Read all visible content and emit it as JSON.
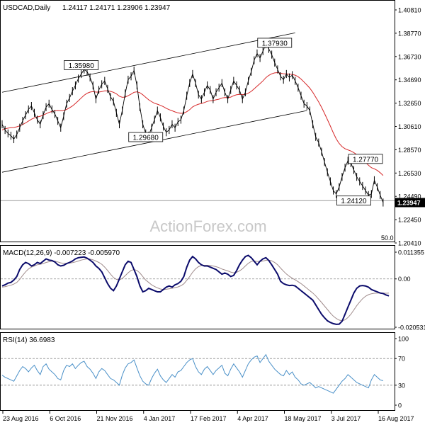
{
  "chart_data": {
    "type": "line",
    "title": "USDCAD,Daily",
    "ohlc": "1.24117 1.24171 1.23906 1.23947",
    "watermark": "ActionForex.com",
    "fib_label": "50.0",
    "colors": {
      "price": "#000000",
      "ema": "#d62728",
      "channel": "#000000",
      "macd": "#0b0b6b",
      "signal": "#a08c8c",
      "rsi": "#4a90c8",
      "guide": "#8a8a8a",
      "last_price_bg": "#000000"
    },
    "x_labels": [
      "23 Aug 2016",
      "6 Oct 2016",
      "21 Nov 2016",
      "4 Jan 2017",
      "17 Feb 2017",
      "4 Apr 2017",
      "18 May 2017",
      "3 Jul 2017",
      "16 Aug 2017"
    ],
    "price_panel": {
      "ylim": [
        1.2041,
        1.4081
      ],
      "y_ticks": [
        "1.40810",
        "1.38770",
        "1.36730",
        "1.34690",
        "1.32650",
        "1.30610",
        "1.28570",
        "1.26530",
        "1.24490",
        "1.22450",
        "1.20410"
      ],
      "last_price": "1.23947",
      "annotations": [
        {
          "label": "1.35980",
          "x": 27,
          "y": 1.3598
        },
        {
          "label": "1.29680",
          "x": 49,
          "y": 1.2968
        },
        {
          "label": "1.37930",
          "x": 93,
          "y": 1.3793
        },
        {
          "label": "1.27770",
          "x": 124,
          "y": 1.2777
        },
        {
          "label": "1.24120",
          "x": 120,
          "y": 1.2412
        }
      ],
      "channel_upper": [
        [
          0,
          1.336
        ],
        [
          100,
          1.388
        ]
      ],
      "channel_lower": [
        [
          0,
          1.266
        ],
        [
          104,
          1.32
        ]
      ],
      "horizontal_line": 1.2412,
      "close": [
        1.308,
        1.303,
        1.3,
        1.298,
        1.295,
        1.299,
        1.305,
        1.311,
        1.316,
        1.321,
        1.324,
        1.318,
        1.312,
        1.308,
        1.316,
        1.323,
        1.326,
        1.321,
        1.317,
        1.311,
        1.305,
        1.315,
        1.326,
        1.331,
        1.337,
        1.342,
        1.348,
        1.352,
        1.356,
        1.354,
        1.349,
        1.342,
        1.33,
        1.338,
        1.343,
        1.346,
        1.339,
        1.332,
        1.328,
        1.318,
        1.308,
        1.32,
        1.335,
        1.347,
        1.35,
        1.355,
        1.342,
        1.323,
        1.308,
        1.3,
        1.298,
        1.305,
        1.312,
        1.32,
        1.314,
        1.306,
        1.301,
        1.303,
        1.308,
        1.305,
        1.31,
        1.312,
        1.32,
        1.333,
        1.344,
        1.352,
        1.344,
        1.334,
        1.33,
        1.336,
        1.342,
        1.338,
        1.33,
        1.336,
        1.34,
        1.344,
        1.336,
        1.33,
        1.338,
        1.346,
        1.342,
        1.338,
        1.33,
        1.336,
        1.346,
        1.354,
        1.364,
        1.37,
        1.366,
        1.372,
        1.378,
        1.374,
        1.369,
        1.362,
        1.356,
        1.35,
        1.347,
        1.352,
        1.349,
        1.351,
        1.346,
        1.34,
        1.333,
        1.326,
        1.324,
        1.32,
        1.308,
        1.297,
        1.292,
        1.284,
        1.275,
        1.266,
        1.258,
        1.25,
        1.247,
        1.253,
        1.262,
        1.27,
        1.276,
        1.274,
        1.268,
        1.262,
        1.258,
        1.254,
        1.25,
        1.246,
        1.247,
        1.259,
        1.253,
        1.246,
        1.2395
      ],
      "ema": [
        1.303,
        1.304,
        1.3046,
        1.305,
        1.3052,
        1.3058,
        1.3066,
        1.3078,
        1.3092,
        1.3108,
        1.3124,
        1.3136,
        1.3144,
        1.315,
        1.316,
        1.3172,
        1.3184,
        1.3192,
        1.3198,
        1.32,
        1.3198,
        1.32,
        1.321,
        1.3224,
        1.324,
        1.3262,
        1.3286,
        1.331,
        1.3334,
        1.3352,
        1.3362,
        1.3366,
        1.3362,
        1.3362,
        1.3366,
        1.3372,
        1.3372,
        1.3368,
        1.336,
        1.3346,
        1.3326,
        1.3316,
        1.3318,
        1.333,
        1.3344,
        1.336,
        1.3364,
        1.3356,
        1.3338,
        1.3316,
        1.3294,
        1.3278,
        1.3264,
        1.3256,
        1.3246,
        1.3234,
        1.322,
        1.3208,
        1.3198,
        1.3188,
        1.318,
        1.3176,
        1.3178,
        1.319,
        1.3208,
        1.3232,
        1.3246,
        1.3256,
        1.3262,
        1.327,
        1.328,
        1.3286,
        1.3288,
        1.3294,
        1.33,
        1.331,
        1.3314,
        1.3314,
        1.3318,
        1.333,
        1.3338,
        1.3342,
        1.334,
        1.3342,
        1.3352,
        1.3368,
        1.339,
        1.3414,
        1.3436,
        1.346,
        1.3488,
        1.3508,
        1.3522,
        1.353,
        1.3532,
        1.3528,
        1.3522,
        1.3522,
        1.3518,
        1.3516,
        1.351,
        1.3496,
        1.3476,
        1.345,
        1.3424,
        1.3396,
        1.336,
        1.3318,
        1.3276,
        1.3228,
        1.3176,
        1.312,
        1.3064,
        1.3006,
        1.2952,
        1.2912,
        1.2884,
        1.2866,
        1.2856,
        1.2846,
        1.2832,
        1.2814,
        1.2794,
        1.2772,
        1.2748,
        1.2722,
        1.27,
        1.269,
        1.2676,
        1.2656,
        1.2632
      ],
      "x_max": 131
    },
    "macd_panel": {
      "label": "MACD(12,26,9) -0.007223 -0.005970",
      "ylim": [
        -0.020531,
        0.011355
      ],
      "y_ticks": [
        "0.011355",
        "0.00",
        "-0.020531"
      ],
      "macd": [
        -0.003,
        -0.0025,
        -0.0018,
        -0.0015,
        -0.0005,
        0.001,
        0.004,
        0.006,
        0.007,
        0.0065,
        0.0055,
        0.006,
        0.007,
        0.0065,
        0.0075,
        0.0085,
        0.008,
        0.0078,
        0.0072,
        0.006,
        0.0055,
        0.0058,
        0.0065,
        0.007,
        0.0076,
        0.0085,
        0.009,
        0.0092,
        0.0093,
        0.0088,
        0.008,
        0.007,
        0.0055,
        0.0045,
        0.003,
        0.0005,
        -0.002,
        -0.004,
        -0.005,
        -0.003,
        0.0,
        0.003,
        0.006,
        0.0075,
        0.007,
        0.004,
        0.001,
        -0.003,
        -0.0055,
        -0.005,
        -0.004,
        -0.0045,
        -0.005,
        -0.0055,
        -0.0055,
        -0.0045,
        -0.0035,
        -0.003,
        -0.0035,
        -0.0025,
        -0.002,
        -0.001,
        0.001,
        0.005,
        0.008,
        0.0095,
        0.0085,
        0.007,
        0.006,
        0.0055,
        0.0055,
        0.005,
        0.0045,
        0.004,
        0.003,
        0.002,
        0.0025,
        0.002,
        0.001,
        0.0015,
        0.0035,
        0.006,
        0.008,
        0.0095,
        0.01,
        0.009,
        0.0075,
        0.006,
        0.0075,
        0.0085,
        0.009,
        0.0078,
        0.006,
        0.004,
        0.002,
        -0.001,
        -0.002,
        -0.0025,
        -0.0028,
        -0.0027,
        -0.003,
        -0.004,
        -0.005,
        -0.006,
        -0.007,
        -0.008,
        -0.009,
        -0.011,
        -0.013,
        -0.015,
        -0.0165,
        -0.0178,
        -0.0185,
        -0.019,
        -0.0193,
        -0.0192,
        -0.018,
        -0.015,
        -0.012,
        -0.009,
        -0.006,
        -0.004,
        -0.003,
        -0.0028,
        -0.003,
        -0.0035,
        -0.0045,
        -0.005,
        -0.0055,
        -0.006,
        -0.0062,
        -0.0068,
        -0.0072
      ],
      "signal": [
        -0.0035,
        -0.0033,
        -0.003,
        -0.0027,
        -0.0022,
        -0.0015,
        -0.0002,
        0.0015,
        0.003,
        0.0042,
        0.005,
        0.0055,
        0.006,
        0.0062,
        0.0065,
        0.007,
        0.0073,
        0.0075,
        0.0075,
        0.0072,
        0.0068,
        0.0066,
        0.0066,
        0.0067,
        0.0069,
        0.0072,
        0.0076,
        0.008,
        0.0083,
        0.0085,
        0.0084,
        0.0081,
        0.0076,
        0.007,
        0.0062,
        0.005,
        0.0036,
        0.002,
        0.0006,
        -0.0002,
        -0.0004,
        0.0002,
        0.0014,
        0.0026,
        0.0036,
        0.004,
        0.0036,
        0.0025,
        0.001,
        -0.0005,
        -0.0015,
        -0.0025,
        -0.0032,
        -0.0038,
        -0.0043,
        -0.0045,
        -0.0044,
        -0.0042,
        -0.004,
        -0.0037,
        -0.0034,
        -0.0029,
        -0.0021,
        -0.0006,
        0.001,
        0.0028,
        0.0043,
        0.0052,
        0.0057,
        0.0058,
        0.0058,
        0.0057,
        0.0055,
        0.0052,
        0.0048,
        0.0042,
        0.0038,
        0.0034,
        0.0029,
        0.0026,
        0.0028,
        0.0034,
        0.0043,
        0.0055,
        0.0066,
        0.0074,
        0.0076,
        0.0074,
        0.0074,
        0.0076,
        0.0079,
        0.008,
        0.0077,
        0.007,
        0.006,
        0.0046,
        0.0033,
        0.0021,
        0.0011,
        0.0003,
        -0.0004,
        -0.0012,
        -0.002,
        -0.003,
        -0.004,
        -0.005,
        -0.006,
        -0.0072,
        -0.0086,
        -0.01,
        -0.0115,
        -0.013,
        -0.0145,
        -0.0158,
        -0.0168,
        -0.0175,
        -0.0178,
        -0.0174,
        -0.0164,
        -0.015,
        -0.0132,
        -0.0114,
        -0.0098,
        -0.0084,
        -0.0074,
        -0.0067,
        -0.0063,
        -0.0061,
        -0.006,
        -0.006,
        -0.006,
        -0.0061,
        -0.006
      ],
      "x_max": 131
    },
    "rsi_panel": {
      "label": "RSI(14) 36.6983",
      "ylim": [
        0,
        100
      ],
      "y_ticks": [
        "100",
        "70",
        "30",
        "0"
      ],
      "guides": [
        70,
        30
      ],
      "rsi": [
        45,
        42,
        40,
        38,
        36,
        44,
        52,
        58,
        55,
        50,
        56,
        60,
        52,
        46,
        58,
        62,
        54,
        50,
        46,
        40,
        38,
        52,
        60,
        58,
        62,
        55,
        60,
        64,
        66,
        58,
        54,
        48,
        40,
        50,
        55,
        52,
        46,
        40,
        38,
        34,
        30,
        45,
        56,
        62,
        64,
        68,
        56,
        44,
        36,
        32,
        30,
        40,
        48,
        54,
        44,
        38,
        34,
        40,
        46,
        42,
        50,
        52,
        58,
        64,
        68,
        70,
        58,
        50,
        46,
        54,
        58,
        52,
        46,
        52,
        56,
        60,
        48,
        44,
        54,
        62,
        56,
        50,
        42,
        52,
        62,
        68,
        72,
        74,
        64,
        70,
        76,
        66,
        60,
        54,
        50,
        46,
        44,
        52,
        46,
        50,
        42,
        38,
        32,
        30,
        32,
        34,
        30,
        26,
        28,
        26,
        24,
        22,
        20,
        18,
        24,
        30,
        36,
        40,
        46,
        42,
        38,
        34,
        32,
        30,
        28,
        26,
        38,
        46,
        42,
        38,
        36.7
      ],
      "x_max": 131
    }
  }
}
